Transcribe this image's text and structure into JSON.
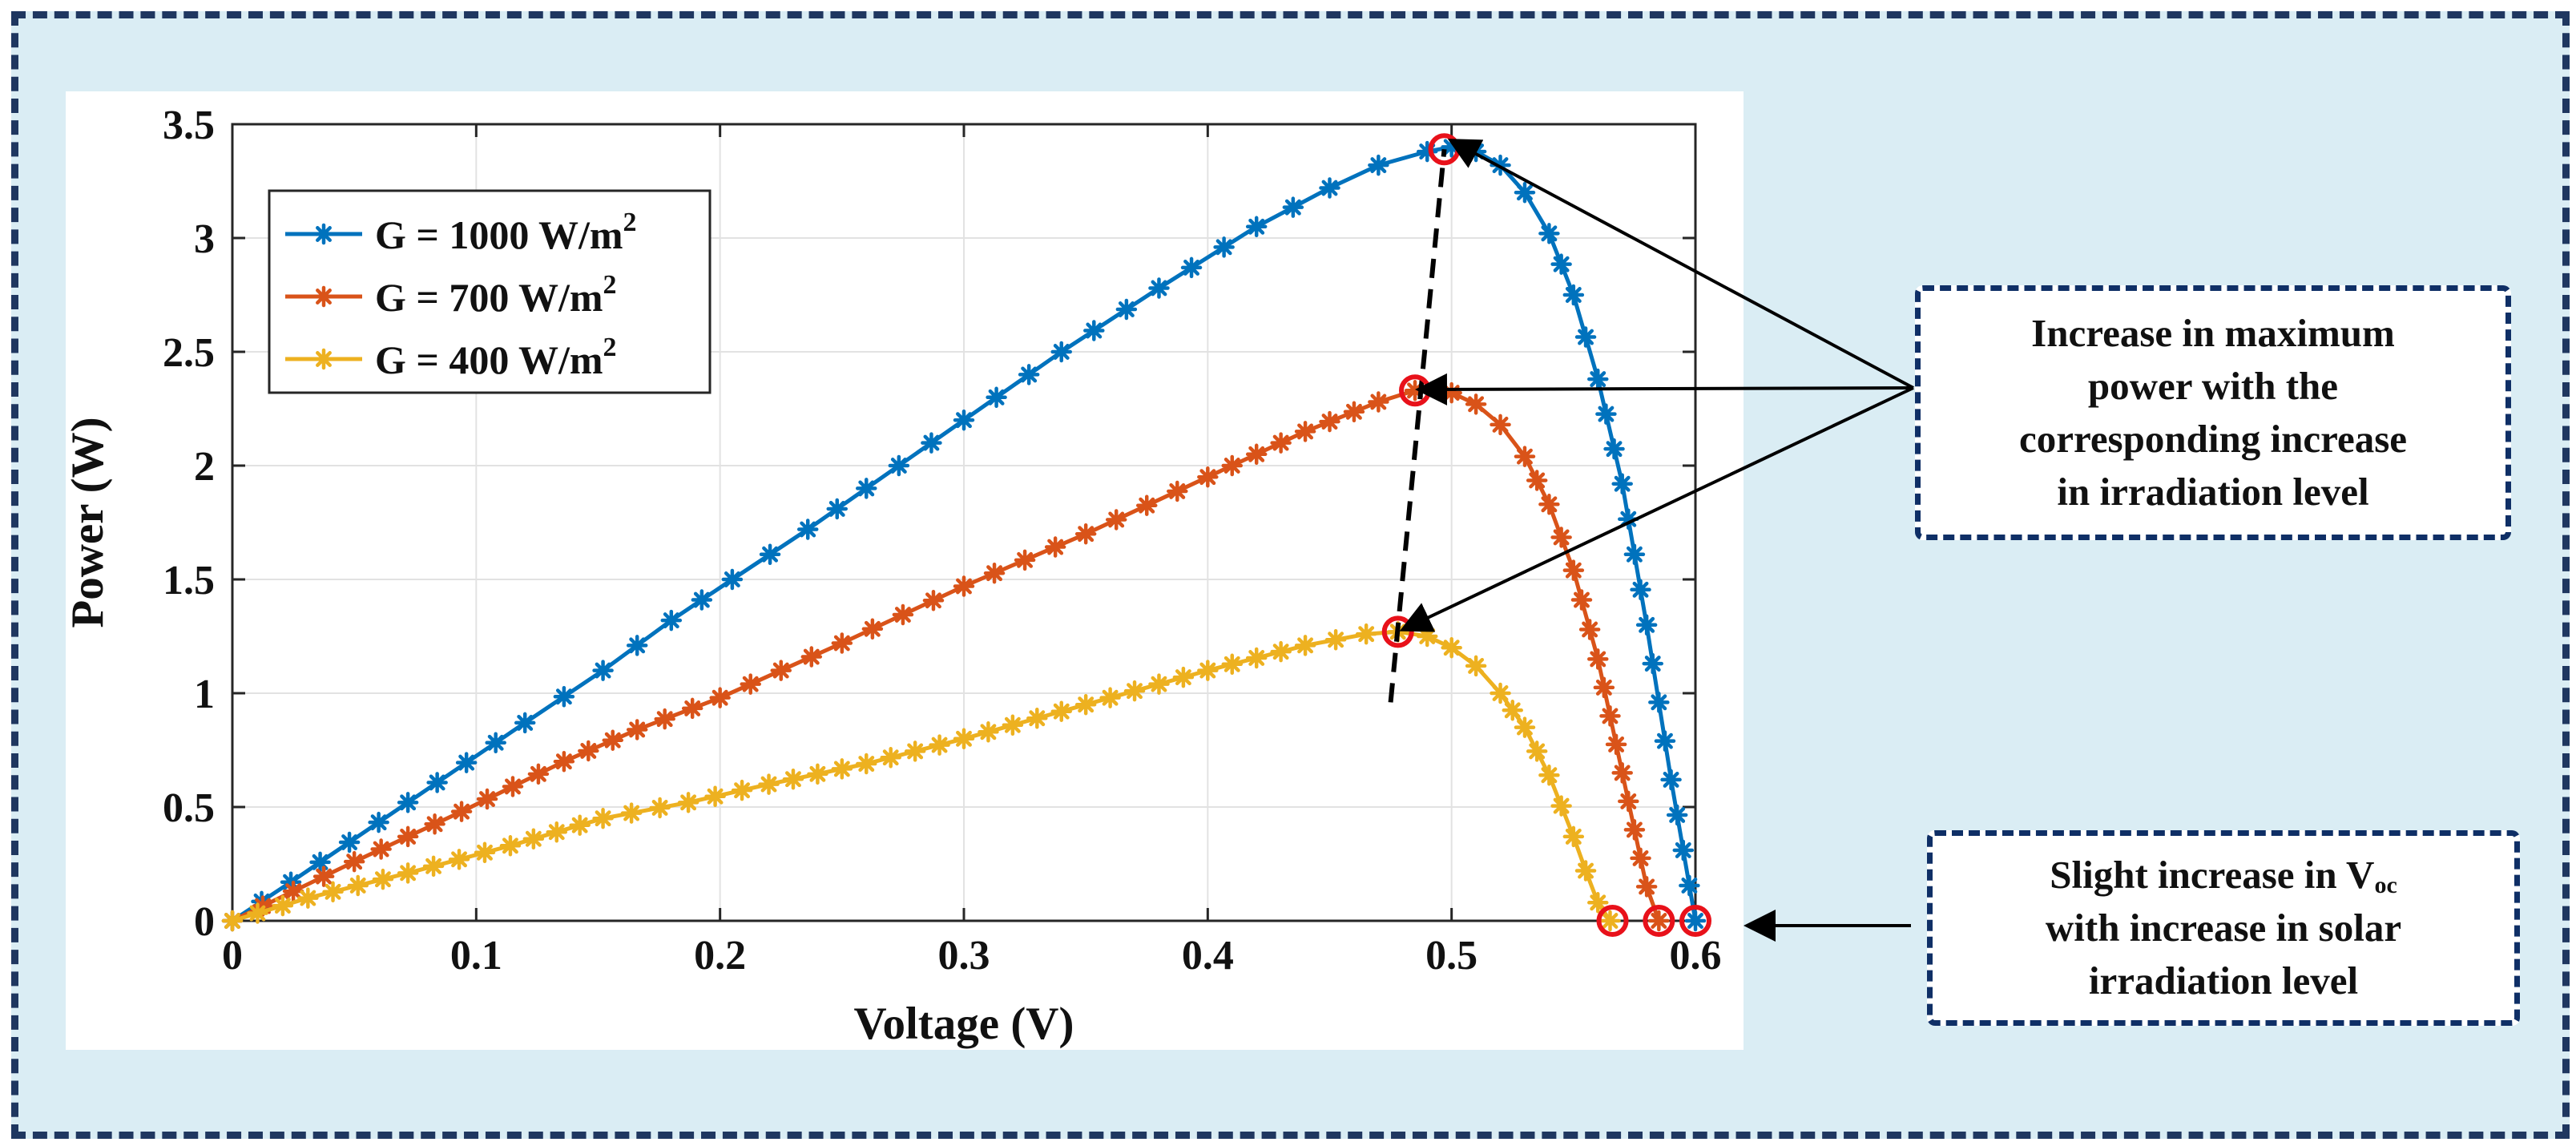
{
  "chart_data": {
    "type": "line",
    "xlabel": "Voltage (V)",
    "ylabel": "Power (W)",
    "xlim": [
      0,
      0.6
    ],
    "ylim": [
      0,
      3.5
    ],
    "xticks": [
      0,
      0.1,
      0.2,
      0.3,
      0.4,
      0.5,
      0.6
    ],
    "xtick_labels": [
      "0",
      "0.1",
      "0.2",
      "0.3",
      "0.4",
      "0.5",
      "0.6"
    ],
    "yticks": [
      0,
      0.5,
      1,
      1.5,
      2,
      2.5,
      3,
      3.5
    ],
    "ytick_labels": [
      "0",
      "0.5",
      "1",
      "1.5",
      "2",
      "2.5",
      "3",
      "3.5"
    ],
    "grid": true,
    "legend_position": "top-left",
    "series": [
      {
        "name": "G = 1000 W/m",
        "name_sup": "2",
        "color": "#0072bd",
        "x": [
          0,
          0.024,
          0.072,
          0.12,
          0.152,
          0.18,
          0.205,
          0.236,
          0.26,
          0.3,
          0.34,
          0.38,
          0.42,
          0.45,
          0.47,
          0.49,
          0.5,
          0.51,
          0.52,
          0.53,
          0.54,
          0.55,
          0.56,
          0.57,
          0.58,
          0.59,
          0.6
        ],
        "y": [
          0,
          0.17,
          0.52,
          0.87,
          1.1,
          1.32,
          1.5,
          1.72,
          1.9,
          2.2,
          2.5,
          2.78,
          3.05,
          3.22,
          3.32,
          3.38,
          3.4,
          3.38,
          3.32,
          3.2,
          3.02,
          2.75,
          2.38,
          1.92,
          1.3,
          0.62,
          0
        ]
      },
      {
        "name": "G = 700 W/m",
        "name_sup": "2",
        "color": "#d95319",
        "x": [
          0,
          0.05,
          0.094,
          0.136,
          0.166,
          0.2,
          0.25,
          0.3,
          0.35,
          0.4,
          0.44,
          0.47,
          0.485,
          0.5,
          0.51,
          0.52,
          0.53,
          0.54,
          0.55,
          0.56,
          0.57,
          0.575,
          0.58,
          0.585
        ],
        "y": [
          0,
          0.26,
          0.48,
          0.7,
          0.84,
          0.98,
          1.22,
          1.47,
          1.7,
          1.95,
          2.15,
          2.28,
          2.33,
          2.32,
          2.27,
          2.18,
          2.04,
          1.83,
          1.54,
          1.15,
          0.65,
          0.4,
          0.15,
          0
        ]
      },
      {
        "name": "G = 400 W/m",
        "name_sup": "2",
        "color": "#edb120",
        "x": [
          0,
          0.031,
          0.072,
          0.114,
          0.152,
          0.187,
          0.22,
          0.26,
          0.3,
          0.35,
          0.4,
          0.44,
          0.465,
          0.478,
          0.49,
          0.5,
          0.51,
          0.52,
          0.53,
          0.54,
          0.55,
          0.555,
          0.56,
          0.565
        ],
        "y": [
          0,
          0.1,
          0.21,
          0.33,
          0.45,
          0.52,
          0.6,
          0.69,
          0.8,
          0.95,
          1.1,
          1.21,
          1.26,
          1.27,
          1.25,
          1.2,
          1.12,
          1.0,
          0.85,
          0.64,
          0.37,
          0.22,
          0.08,
          0
        ]
      }
    ],
    "mpp_markers": [
      {
        "x": 0.497,
        "y": 3.39
      },
      {
        "x": 0.485,
        "y": 2.33
      },
      {
        "x": 0.478,
        "y": 1.27
      }
    ],
    "voc_markers": [
      {
        "x": 0.566,
        "y": 0
      },
      {
        "x": 0.585,
        "y": 0
      },
      {
        "x": 0.6,
        "y": 0
      }
    ],
    "trend_line": {
      "from": {
        "x": 0.475,
        "y": 0.96
      },
      "to": {
        "x": 0.497,
        "y": 3.39
      }
    },
    "marker_color": "#e8111a"
  },
  "callouts": {
    "max_power": [
      "Increase in maximum",
      "power with the",
      "corresponding increase",
      "in irradiation level"
    ],
    "voc": {
      "line1_prefix": "Slight increase in V",
      "line1_sub": "oc",
      "line2": "with increase in solar",
      "line3": "irradiation level"
    }
  },
  "colors": {
    "background": "#daedf4",
    "frame_border": "#1f3760",
    "callout_border": "#0f2f66",
    "plot_panel": "#ffffff",
    "grid": "#e2e2e2",
    "arrow": "#000000"
  }
}
